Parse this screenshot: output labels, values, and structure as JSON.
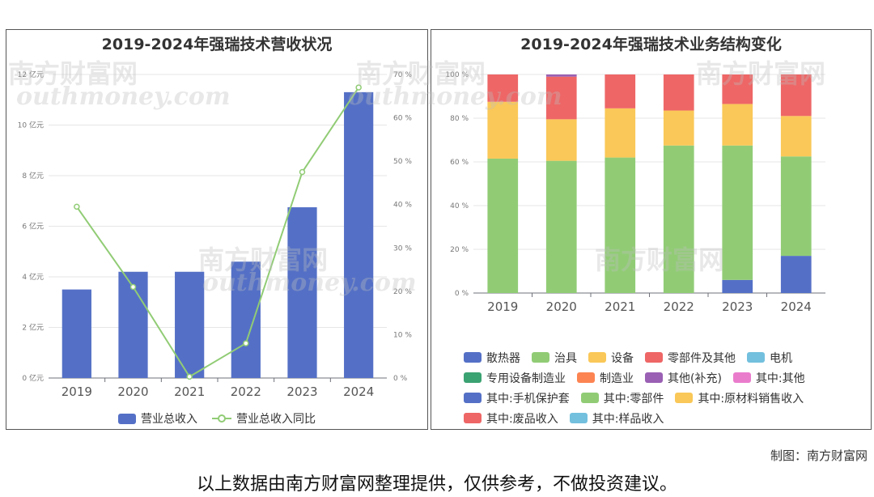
{
  "left_chart": {
    "title": "2019-2024年强瑞技术营收状况",
    "legend": [
      "营业总收入",
      "营业总收入同比"
    ],
    "colors": {
      "bar": "#5470c6",
      "line": "#91cc75"
    },
    "chart_data": {
      "type": "bar",
      "categories": [
        "2019",
        "2020",
        "2021",
        "2022",
        "2023",
        "2024"
      ],
      "series": [
        {
          "name": "营业总收入",
          "type": "bar",
          "axis": "left",
          "values": [
            3.5,
            4.2,
            4.2,
            4.6,
            6.75,
            11.3
          ]
        },
        {
          "name": "营业总收入同比",
          "type": "line",
          "axis": "right",
          "values": [
            39.5,
            21.0,
            0.3,
            8.0,
            47.5,
            67.0
          ]
        }
      ],
      "y_left_ticks": [
        "0 亿元",
        "2 亿元",
        "4 亿元",
        "6 亿元",
        "8 亿元",
        "10 亿元",
        "12 亿元"
      ],
      "y_left_range": [
        0,
        12
      ],
      "y_right_ticks": [
        "0 %",
        "10 %",
        "20 %",
        "30 %",
        "40 %",
        "50 %",
        "60 %",
        "70 %"
      ],
      "y_right_range": [
        0,
        70
      ],
      "grid": true,
      "legend_position": "bottom"
    }
  },
  "right_chart": {
    "title": "2019-2024年强瑞技术业务结构变化",
    "chart_data": {
      "type": "bar",
      "stacked": true,
      "categories": [
        "2019",
        "2020",
        "2021",
        "2022",
        "2023",
        "2024"
      ],
      "y_ticks": [
        "0 %",
        "20 %",
        "40 %",
        "60 %",
        "80 %",
        "100 %"
      ],
      "y_range": [
        0,
        100
      ],
      "grid": true,
      "legend_position": "bottom",
      "series": [
        {
          "name": "散热器",
          "color": "#5470c6",
          "values": [
            0,
            0,
            0,
            0,
            6,
            17
          ]
        },
        {
          "name": "治具",
          "color": "#91cc75",
          "values": [
            61.5,
            60.5,
            62,
            67.5,
            61.5,
            45.5
          ]
        },
        {
          "name": "设备",
          "color": "#fac858",
          "values": [
            26,
            19,
            22.5,
            16,
            19,
            18.5
          ]
        },
        {
          "name": "零部件及其他",
          "color": "#ee6666",
          "values": [
            12.5,
            19.5,
            15.5,
            16.5,
            13.5,
            19
          ]
        },
        {
          "name": "电机",
          "color": "#73c0de",
          "values": [
            0,
            0,
            0,
            0,
            0,
            0
          ]
        },
        {
          "name": "专用设备制造业",
          "color": "#3ba272",
          "values": [
            0,
            0,
            0,
            0,
            0,
            0
          ]
        },
        {
          "name": "制造业",
          "color": "#fc8452",
          "values": [
            0,
            0,
            0,
            0,
            0,
            0
          ]
        },
        {
          "name": "其他(补充)",
          "color": "#9a60b4",
          "values": [
            0,
            1,
            0,
            0,
            0,
            0
          ]
        },
        {
          "name": "其中:其他",
          "color": "#ea7ccc",
          "values": [
            0,
            0,
            0,
            0,
            0,
            0
          ]
        },
        {
          "name": "其中:手机保护套",
          "color": "#5470c6",
          "values": [
            0,
            0,
            0,
            0,
            0,
            0
          ]
        },
        {
          "name": "其中:零部件",
          "color": "#91cc75",
          "values": [
            0,
            0,
            0,
            0,
            0,
            0
          ]
        },
        {
          "name": "其中:原材料销售收入",
          "color": "#fac858",
          "values": [
            0,
            0,
            0,
            0,
            0,
            0
          ]
        },
        {
          "name": "其中:废品收入",
          "color": "#ee6666",
          "values": [
            0,
            0,
            0,
            0,
            0,
            0
          ]
        },
        {
          "name": "其中:样品收入",
          "color": "#73c0de",
          "values": [
            0,
            0,
            0,
            0,
            0,
            0
          ]
        }
      ]
    }
  },
  "watermark": {
    "cn": "南方财富网",
    "en": "outhmoney.com"
  },
  "footer": {
    "credit": "制图：南方财富网",
    "disclaimer": "以上数据由南方财富网整理提供，仅供参考，不做投资建议。"
  }
}
